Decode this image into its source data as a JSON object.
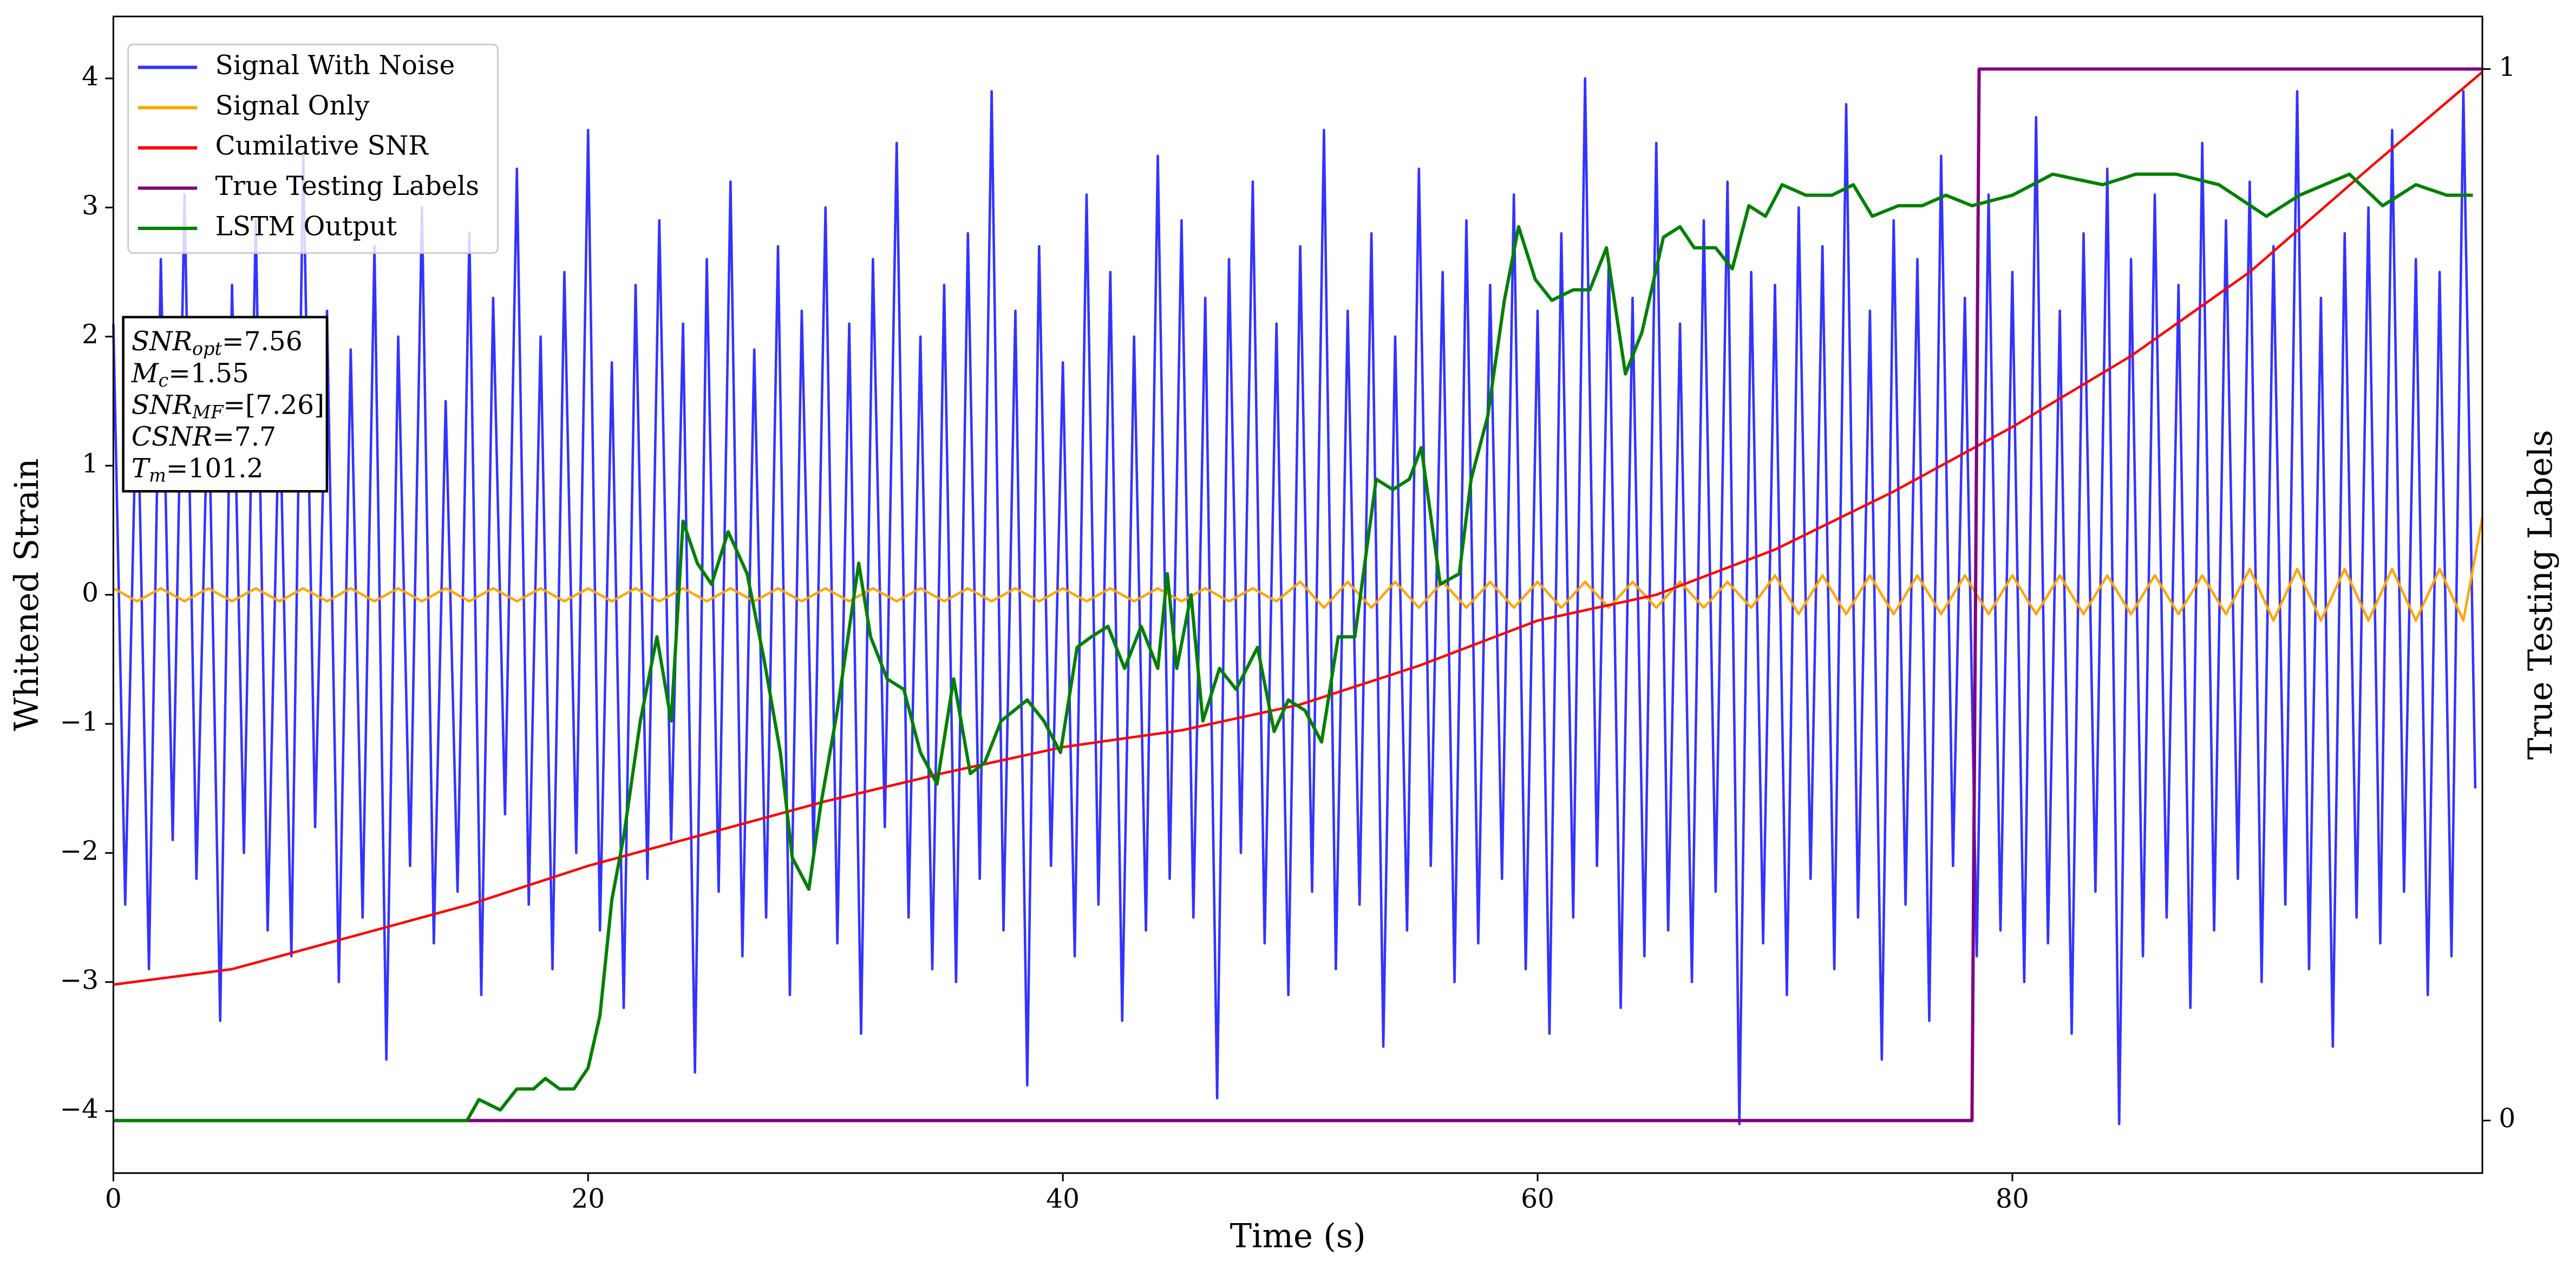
{
  "chart_data": {
    "type": "line",
    "xlabel": "Time (s)",
    "ylabel": "Whitened Strain",
    "y2label": "True Testing Labels",
    "xlim": [
      0,
      99.8
    ],
    "ylim": [
      -4.48,
      4.48
    ],
    "y2lim": [
      -0.05,
      1.05
    ],
    "xticks": [
      0,
      20,
      40,
      60,
      80
    ],
    "yticks": [
      {
        "value": -4,
        "label": "−4"
      },
      {
        "value": -3,
        "label": "−3"
      },
      {
        "value": -2,
        "label": "−2"
      },
      {
        "value": -1,
        "label": "−1"
      },
      0,
      1,
      2,
      3,
      4
    ],
    "y2ticks": [
      0,
      1
    ],
    "grid": false,
    "legend": "upper left",
    "stats_box": [
      {
        "name": "SNR",
        "sub": "opt",
        "value": "=7.56"
      },
      {
        "name": "M",
        "sub": "c",
        "value": "=1.55"
      },
      {
        "name": "SNR",
        "sub": "MF",
        "value": "=[7.26]"
      },
      {
        "name": "CSNR",
        "value": "=7.7"
      },
      {
        "name": "T",
        "sub": "m",
        "value": "=101.2"
      }
    ],
    "series": [
      {
        "name": "Signal With Noise",
        "color": "#3333ff",
        "x": [
          0,
          0.5,
          1,
          1.5,
          2,
          2.5,
          3,
          3.5,
          4,
          4.5,
          5,
          5.5,
          6,
          6.5,
          7,
          7.5,
          8,
          8.5,
          9,
          9.5,
          10,
          10.5,
          11,
          11.5,
          12,
          12.5,
          13,
          13.5,
          14,
          14.5,
          15,
          15.5,
          16,
          16.5,
          17,
          17.5,
          18,
          18.5,
          19,
          19.5,
          20,
          20.5,
          21,
          21.5,
          22,
          22.5,
          23,
          23.5,
          24,
          24.5,
          25,
          25.5,
          26,
          26.5,
          27,
          27.5,
          28,
          28.5,
          29,
          29.5,
          30,
          30.5,
          31,
          31.5,
          32,
          32.5,
          33,
          33.5,
          34,
          34.5,
          35,
          35.5,
          36,
          36.5,
          37,
          37.5,
          38,
          38.5,
          39,
          39.5,
          40,
          40.5,
          41,
          41.5,
          42,
          42.5,
          43,
          43.5,
          44,
          44.5,
          45,
          45.5,
          46,
          46.5,
          47,
          47.5,
          48,
          48.5,
          49,
          49.5,
          50,
          50.5,
          51,
          51.5,
          52,
          52.5,
          53,
          53.5,
          54,
          54.5,
          55,
          55.5,
          56,
          56.5,
          57,
          57.5,
          58,
          58.5,
          59,
          59.5,
          60,
          60.5,
          61,
          61.5,
          62,
          62.5,
          63,
          63.5,
          64,
          64.5,
          65,
          65.5,
          66,
          66.5,
          67,
          67.5,
          68,
          68.5,
          69,
          69.5,
          70,
          70.5,
          71,
          71.5,
          72,
          72.5,
          73,
          73.5,
          74,
          74.5,
          75,
          75.5,
          76,
          76.5,
          77,
          77.5,
          78,
          78.5,
          79,
          79.5,
          80,
          80.5,
          81,
          81.5,
          82,
          82.5,
          83,
          83.5,
          84,
          84.5,
          85,
          85.5,
          86,
          86.5,
          87,
          87.5,
          88,
          88.5,
          89,
          89.5,
          90,
          90.5,
          91,
          91.5,
          92,
          92.5,
          93,
          93.5,
          94,
          94.5,
          95,
          95.5,
          96,
          96.5,
          97,
          97.5,
          98,
          98.5,
          99,
          99.5
        ],
        "values": [
          2.1,
          -2.4,
          1.8,
          -2.9,
          2.6,
          -1.9,
          3.1,
          -2.2,
          1.7,
          -3.3,
          2.4,
          -2.0,
          2.9,
          -2.6,
          1.6,
          -2.8,
          3.4,
          -1.8,
          2.2,
          -3.0,
          1.9,
          -2.5,
          2.7,
          -3.6,
          2.0,
          -2.1,
          3.0,
          -2.7,
          1.5,
          -2.3,
          2.8,
          -3.1,
          2.3,
          -1.7,
          3.3,
          -2.4,
          2.0,
          -2.9,
          2.5,
          -2.0,
          3.6,
          -2.6,
          1.8,
          -3.2,
          2.4,
          -2.2,
          2.9,
          -1.9,
          2.1,
          -3.7,
          2.6,
          -2.3,
          3.2,
          -2.8,
          1.9,
          -2.5,
          2.7,
          -3.1,
          2.2,
          -2.0,
          3.0,
          -2.7,
          2.1,
          -3.4,
          2.6,
          -1.8,
          3.5,
          -2.5,
          2.0,
          -2.9,
          2.4,
          -3.0,
          2.8,
          -2.2,
          3.9,
          -2.6,
          2.2,
          -3.8,
          2.7,
          -2.1,
          1.8,
          -2.8,
          3.1,
          -2.4,
          2.5,
          -3.3,
          2.0,
          -2.6,
          3.4,
          -2.2,
          2.9,
          -2.5,
          2.3,
          -3.9,
          2.6,
          -2.0,
          3.2,
          -2.7,
          2.1,
          -3.1,
          2.7,
          -2.3,
          3.6,
          -2.9,
          2.2,
          -2.4,
          2.8,
          -3.5,
          2.0,
          -2.6,
          3.3,
          -2.1,
          2.5,
          -3.0,
          2.9,
          -2.7,
          2.4,
          -2.2,
          3.1,
          -2.9,
          2.2,
          -3.4,
          2.8,
          -2.5,
          4.0,
          -2.1,
          2.6,
          -3.2,
          2.3,
          -2.8,
          3.5,
          -2.6,
          2.1,
          -3.0,
          2.9,
          -2.3,
          3.2,
          -4.1,
          2.5,
          -2.7,
          2.4,
          -3.1,
          3.0,
          -2.2,
          2.7,
          -2.9,
          3.8,
          -2.5,
          2.2,
          -3.6,
          2.9,
          -2.4,
          2.6,
          -3.3,
          3.4,
          -2.1,
          2.3,
          -2.8,
          3.1,
          -2.6,
          2.5,
          -3.0,
          3.7,
          -2.7,
          2.2,
          -3.4,
          2.8,
          -2.3,
          3.3,
          -4.1,
          2.6,
          -2.8,
          3.1,
          -2.5,
          2.4,
          -3.2,
          3.5,
          -2.6,
          2.9,
          -2.2,
          3.2,
          -3.0,
          2.7,
          -2.4,
          3.9,
          -2.9,
          2.3,
          -3.5,
          2.8,
          -2.5,
          3.0,
          -2.7,
          3.6,
          -2.3,
          2.6,
          -3.1,
          2.5,
          -2.8,
          3.9,
          -1.5
        ]
      },
      {
        "name": "Signal Only",
        "color": "#ffa500",
        "x": [
          0,
          1,
          2,
          3,
          4,
          5,
          6,
          7,
          8,
          9,
          10,
          11,
          12,
          13,
          14,
          15,
          16,
          17,
          18,
          19,
          20,
          21,
          22,
          23,
          24,
          25,
          26,
          27,
          28,
          29,
          30,
          31,
          32,
          33,
          34,
          35,
          36,
          37,
          38,
          39,
          40,
          41,
          42,
          43,
          44,
          45,
          46,
          47,
          48,
          49,
          50,
          51,
          52,
          53,
          54,
          55,
          56,
          57,
          58,
          59,
          60,
          61,
          62,
          63,
          64,
          65,
          66,
          67,
          68,
          69,
          70,
          71,
          72,
          73,
          74,
          75,
          76,
          77,
          78,
          79,
          80,
          81,
          82,
          83,
          84,
          85,
          86,
          87,
          88,
          89,
          90,
          91,
          92,
          93,
          94,
          95,
          96,
          97,
          98,
          99,
          99.8
        ],
        "values": [
          0.05,
          -0.05,
          0.05,
          -0.05,
          0.05,
          -0.05,
          0.05,
          -0.05,
          0.05,
          -0.05,
          0.05,
          -0.05,
          0.05,
          -0.05,
          0.05,
          -0.05,
          0.05,
          -0.05,
          0.05,
          -0.05,
          0.05,
          -0.05,
          0.05,
          -0.05,
          0.05,
          -0.05,
          0.05,
          -0.05,
          0.05,
          -0.05,
          0.05,
          -0.05,
          0.05,
          -0.05,
          0.05,
          -0.05,
          0.05,
          -0.05,
          0.05,
          -0.05,
          0.05,
          -0.05,
          0.05,
          -0.05,
          0.05,
          -0.05,
          0.05,
          -0.05,
          0.05,
          -0.05,
          0.1,
          -0.1,
          0.1,
          -0.1,
          0.1,
          -0.1,
          0.1,
          -0.1,
          0.1,
          -0.1,
          0.1,
          -0.1,
          0.1,
          -0.1,
          0.1,
          -0.1,
          0.1,
          -0.1,
          0.1,
          -0.1,
          0.15,
          -0.15,
          0.15,
          -0.15,
          0.15,
          -0.15,
          0.15,
          -0.15,
          0.15,
          -0.15,
          0.15,
          -0.15,
          0.15,
          -0.15,
          0.15,
          -0.15,
          0.15,
          -0.15,
          0.15,
          -0.15,
          0.2,
          -0.2,
          0.2,
          -0.2,
          0.2,
          -0.2,
          0.2,
          -0.2,
          0.2,
          -0.2,
          0.6
        ]
      },
      {
        "name": "Cumilative SNR",
        "color": "#ff0000",
        "x": [
          0,
          5,
          10,
          15,
          20,
          25,
          30,
          35,
          40,
          45,
          50,
          55,
          60,
          65,
          70,
          75,
          80,
          85,
          90,
          95,
          99.8
        ],
        "values": [
          -3.02,
          -2.9,
          -2.65,
          -2.4,
          -2.1,
          -1.85,
          -1.6,
          -1.38,
          -1.18,
          -1.05,
          -0.85,
          -0.55,
          -0.2,
          0.0,
          0.35,
          0.8,
          1.3,
          1.85,
          2.5,
          3.3,
          4.05
        ]
      },
      {
        "name": "True Testing Labels",
        "color": "#800080",
        "axis": "y2",
        "x": [
          0,
          78.3,
          78.6,
          99.8
        ],
        "values": [
          0,
          0,
          1,
          1
        ]
      },
      {
        "name": "LSTM Output",
        "color": "#008000",
        "axis": "y2",
        "x": [
          0,
          13.9,
          14.9,
          15.4,
          16.3,
          17,
          17.7,
          18.2,
          18.8,
          19.4,
          20,
          20.5,
          21,
          21.5,
          22.2,
          22.9,
          23.5,
          24,
          24.6,
          25.2,
          25.9,
          26.7,
          27.4,
          28.1,
          28.6,
          29.3,
          29.8,
          30.5,
          31.4,
          31.9,
          32.6,
          33.3,
          34,
          34.7,
          35.4,
          36.1,
          36.7,
          37.4,
          38.5,
          39.2,
          39.9,
          40.6,
          41.2,
          41.9,
          42.6,
          43.3,
          44,
          44.4,
          44.8,
          45.4,
          45.9,
          46.6,
          47.3,
          48.2,
          48.9,
          49.5,
          50.2,
          50.9,
          51.6,
          52.3,
          53.2,
          53.9,
          54.6,
          55.1,
          55.9,
          56.7,
          57.2,
          57.9,
          58.6,
          59.2,
          59.9,
          60.6,
          61.5,
          62.2,
          62.9,
          63.7,
          64.4,
          65.3,
          66,
          66.6,
          67.5,
          68.2,
          68.9,
          69.6,
          70.3,
          71.3,
          72.4,
          73.3,
          74.1,
          75.2,
          76.2,
          77.2,
          78.3,
          80,
          81.7,
          83.8,
          85.2,
          86.9,
          88.7,
          90.7,
          92.1,
          94.2,
          95.6,
          97,
          98.3,
          99.4
        ],
        "values": [
          0,
          0,
          0,
          0.02,
          0.01,
          0.03,
          0.03,
          0.04,
          0.03,
          0.03,
          0.05,
          0.1,
          0.21,
          0.27,
          0.38,
          0.46,
          0.38,
          0.57,
          0.53,
          0.51,
          0.56,
          0.52,
          0.44,
          0.35,
          0.25,
          0.22,
          0.3,
          0.39,
          0.53,
          0.46,
          0.42,
          0.41,
          0.35,
          0.32,
          0.42,
          0.33,
          0.34,
          0.38,
          0.4,
          0.38,
          0.35,
          0.45,
          0.46,
          0.47,
          0.43,
          0.47,
          0.43,
          0.52,
          0.43,
          0.5,
          0.38,
          0.43,
          0.41,
          0.45,
          0.37,
          0.4,
          0.39,
          0.36,
          0.46,
          0.46,
          0.61,
          0.6,
          0.61,
          0.64,
          0.51,
          0.52,
          0.61,
          0.67,
          0.78,
          0.85,
          0.8,
          0.78,
          0.79,
          0.79,
          0.83,
          0.71,
          0.75,
          0.84,
          0.85,
          0.83,
          0.83,
          0.81,
          0.87,
          0.86,
          0.89,
          0.88,
          0.88,
          0.89,
          0.86,
          0.87,
          0.87,
          0.88,
          0.87,
          0.88,
          0.9,
          0.89,
          0.9,
          0.9,
          0.89,
          0.86,
          0.88,
          0.9,
          0.87,
          0.89,
          0.88,
          0.88
        ]
      }
    ]
  }
}
